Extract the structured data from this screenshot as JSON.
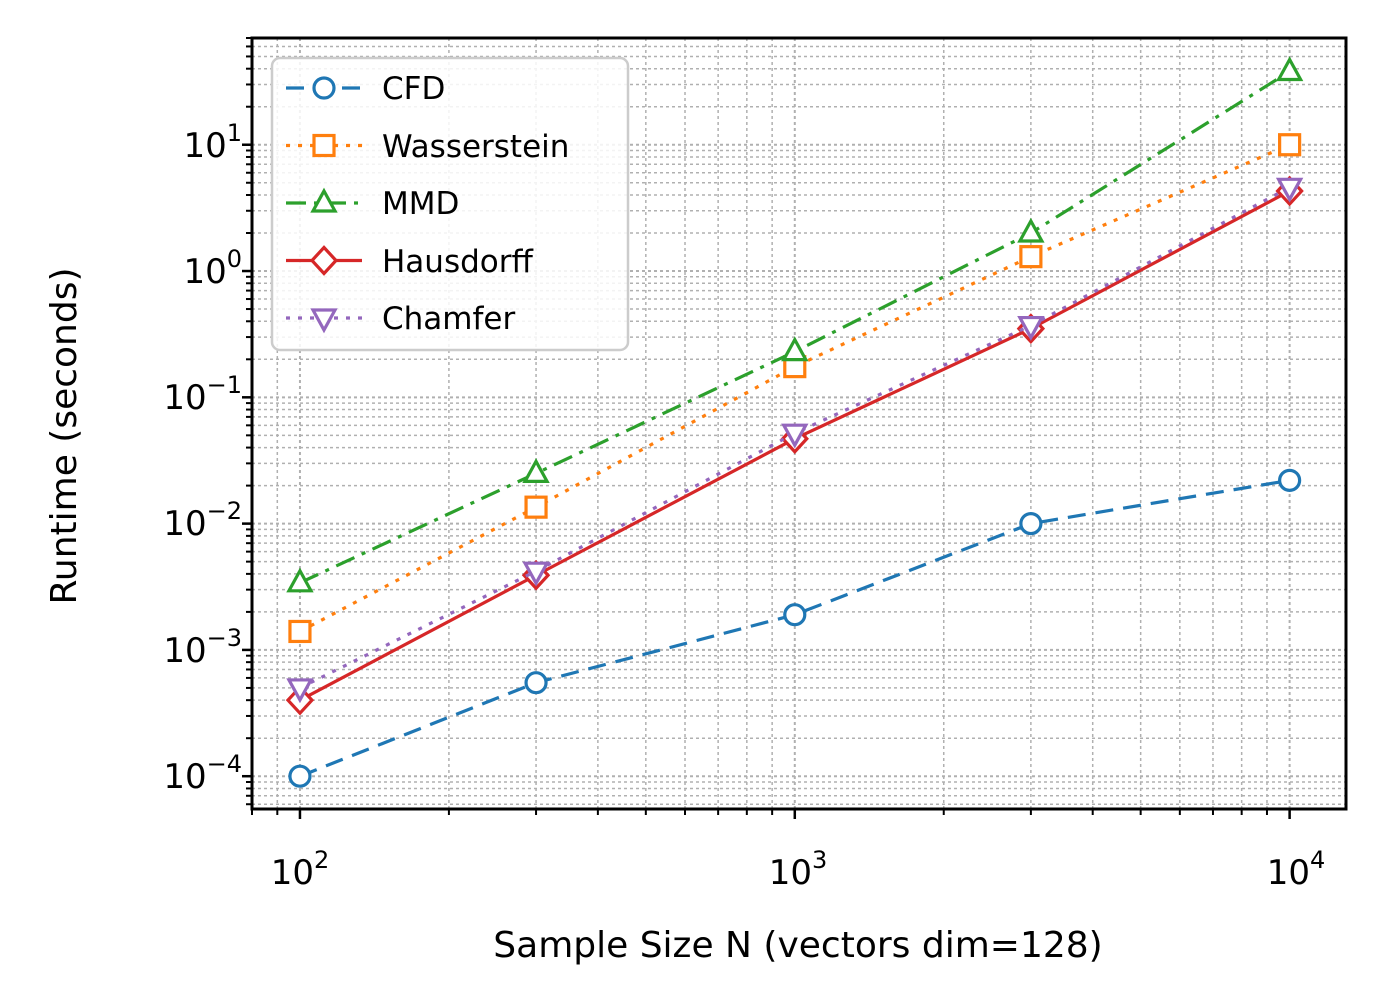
{
  "chart_data": {
    "type": "line",
    "xscale": "log",
    "yscale": "log",
    "xlabel": "Sample Size N (vectors dim=128)",
    "ylabel": "Runtime (seconds)",
    "xlim": [
      80,
      13000
    ],
    "ylim": [
      5.5e-05,
      70
    ],
    "xticks": [
      100,
      1000,
      10000
    ],
    "yticks": [
      0.0001,
      0.001,
      0.01,
      0.1,
      1,
      10
    ],
    "xtick_labels": [
      {
        "base": "10",
        "exp": "2"
      },
      {
        "base": "10",
        "exp": "3"
      },
      {
        "base": "10",
        "exp": "4"
      }
    ],
    "ytick_labels": [
      {
        "base": "10",
        "exp": "−4"
      },
      {
        "base": "10",
        "exp": "−3"
      },
      {
        "base": "10",
        "exp": "−2"
      },
      {
        "base": "10",
        "exp": "−1"
      },
      {
        "base": "10",
        "exp": "0"
      },
      {
        "base": "10",
        "exp": "1"
      }
    ],
    "grid": true,
    "legend_position": "top-left",
    "x": [
      100,
      300,
      1000,
      3000,
      10000
    ],
    "series": [
      {
        "name": "CFD",
        "values": [
          0.0001,
          0.00055,
          0.0019,
          0.01,
          0.022
        ],
        "color": "#1f77b4",
        "marker": "circle",
        "dash": "18 10"
      },
      {
        "name": "Wasserstein",
        "values": [
          0.0014,
          0.0135,
          0.175,
          1.3,
          10
        ],
        "color": "#ff7f0e",
        "marker": "square",
        "dash": "4 8"
      },
      {
        "name": "MMD",
        "values": [
          0.0034,
          0.025,
          0.23,
          2.0,
          38
        ],
        "color": "#2ca02c",
        "marker": "triangle-up",
        "dash": "20 8 4 8"
      },
      {
        "name": "Hausdorff",
        "values": [
          0.0004,
          0.0039,
          0.047,
          0.35,
          4.3
        ],
        "color": "#d62728",
        "marker": "diamond",
        "dash": ""
      },
      {
        "name": "Chamfer",
        "values": [
          0.0005,
          0.0042,
          0.052,
          0.37,
          4.6
        ],
        "color": "#9467bd",
        "marker": "triangle-down",
        "dash": "4 8"
      }
    ]
  }
}
